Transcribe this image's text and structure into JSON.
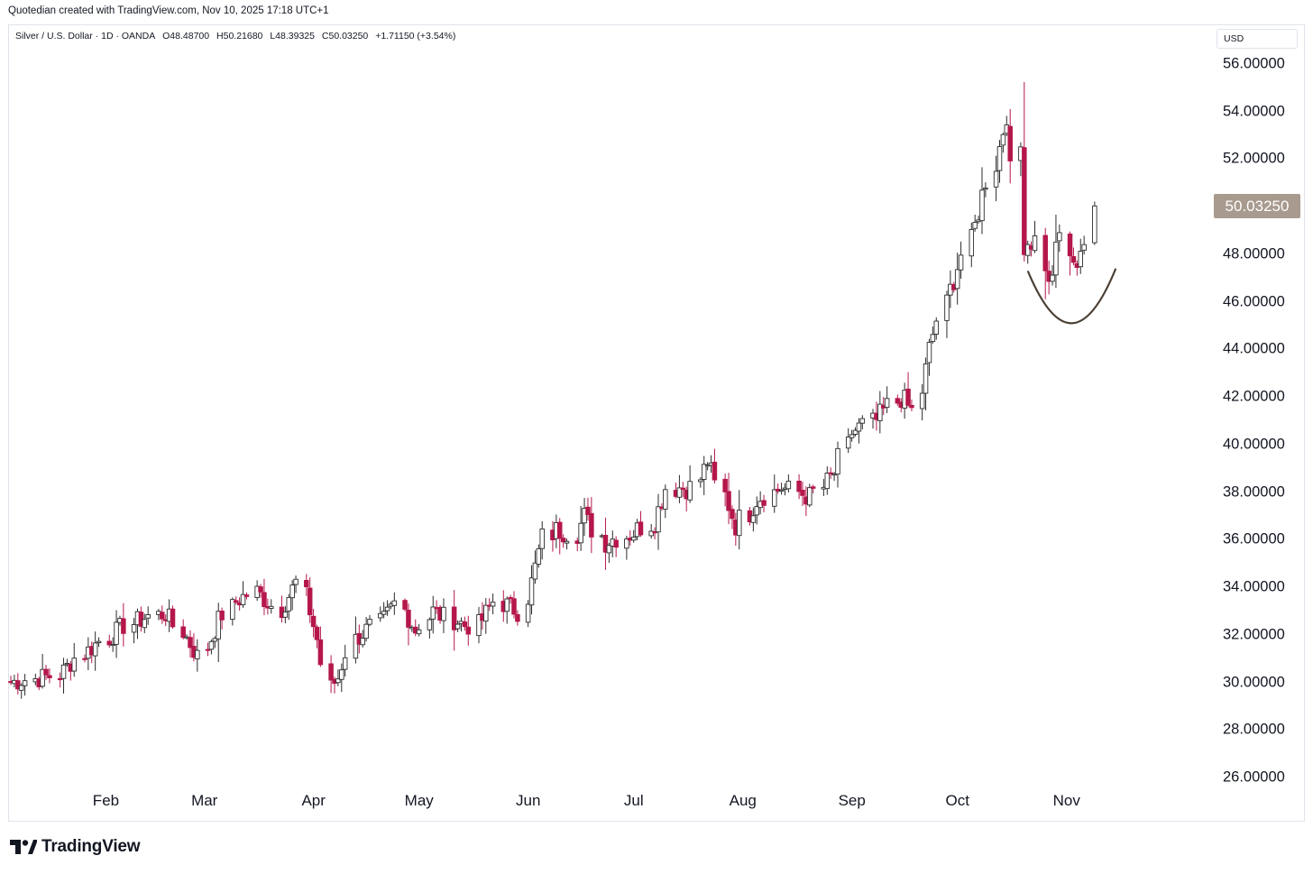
{
  "header": {
    "credit": "Quotedian created with TradingView.com, Nov 10, 2025 17:18 UTC+1"
  },
  "legend": {
    "symbol": "Silver / U.S. Dollar · 1D · OANDA",
    "open": "O48.48700",
    "high": "H50.21680",
    "low": "L48.39325",
    "close": "C50.03250",
    "change": "+1.71150 (+3.54%)"
  },
  "price_scale": {
    "currency": "USD",
    "last_price_label": "50.03250",
    "last_price_color": "#a89a8e"
  },
  "branding": {
    "logo_icon": "tradingview-logo-icon",
    "text": "TradingView"
  },
  "colors": {
    "up_body": "#ffffff",
    "up_outline": "#2b2b2b",
    "down_body": "#b5174a",
    "wick": "#2b2b2b",
    "down_wick": "#b5174a",
    "annotation": "#4a3f35"
  },
  "chart_data": {
    "type": "candlestick",
    "title": "Silver / U.S. Dollar · 1D · OANDA",
    "ylim": [
      25,
      57.2
    ],
    "yticks": [
      26,
      28,
      30,
      32,
      34,
      36,
      38,
      40,
      42,
      44,
      46,
      48,
      50,
      52,
      54,
      56
    ],
    "ytick_labels": [
      "26.00000",
      "28.00000",
      "30.00000",
      "32.00000",
      "34.00000",
      "36.00000",
      "38.00000",
      "40.00000",
      "42.00000",
      "44.00000",
      "46.00000",
      "48.00000",
      "50.00000",
      "52.00000",
      "54.00000",
      "56.00000"
    ],
    "xticks": [
      {
        "label": "Feb",
        "date": "2025-02-01"
      },
      {
        "label": "Mar",
        "date": "2025-03-01"
      },
      {
        "label": "Apr",
        "date": "2025-04-01"
      },
      {
        "label": "May",
        "date": "2025-05-01"
      },
      {
        "label": "Jun",
        "date": "2025-06-01"
      },
      {
        "label": "Jul",
        "date": "2025-07-01"
      },
      {
        "label": "Aug",
        "date": "2025-08-01"
      },
      {
        "label": "Sep",
        "date": "2025-09-01"
      },
      {
        "label": "Oct",
        "date": "2025-10-01"
      },
      {
        "label": "Nov",
        "date": "2025-11-01"
      }
    ],
    "x_range": [
      "2025-01-06",
      "2025-11-29"
    ],
    "series": [
      {
        "name": "Silver / U.S. Dollar",
        "anchors": [
          {
            "date": "2025-01-06",
            "close": 30.0
          },
          {
            "date": "2025-01-20",
            "close": 30.3
          },
          {
            "date": "2025-01-27",
            "close": 31.2
          },
          {
            "date": "2025-02-07",
            "close": 32.4
          },
          {
            "date": "2025-02-14",
            "close": 32.8
          },
          {
            "date": "2025-02-19",
            "close": 32.9
          },
          {
            "date": "2025-02-28",
            "close": 31.1
          },
          {
            "date": "2025-03-06",
            "close": 32.6
          },
          {
            "date": "2025-03-11",
            "close": 33.4
          },
          {
            "date": "2025-03-17",
            "close": 33.8
          },
          {
            "date": "2025-03-24",
            "close": 33.1
          },
          {
            "date": "2025-03-28",
            "close": 34.2
          },
          {
            "date": "2025-04-03",
            "close": 31.8
          },
          {
            "date": "2025-04-07",
            "close": 29.8
          },
          {
            "date": "2025-04-09",
            "close": 30.2
          },
          {
            "date": "2025-04-14",
            "close": 31.8
          },
          {
            "date": "2025-04-22",
            "close": 32.6
          },
          {
            "date": "2025-04-25",
            "close": 33.3
          },
          {
            "date": "2025-05-01",
            "close": 32.2
          },
          {
            "date": "2025-05-06",
            "close": 33.0
          },
          {
            "date": "2025-05-15",
            "close": 32.4
          },
          {
            "date": "2025-05-19",
            "close": 32.4
          },
          {
            "date": "2025-05-23",
            "close": 33.4
          },
          {
            "date": "2025-05-30",
            "close": 33.0
          },
          {
            "date": "2025-06-03",
            "close": 34.2
          },
          {
            "date": "2025-06-06",
            "close": 36.1
          },
          {
            "date": "2025-06-10",
            "close": 36.4
          },
          {
            "date": "2025-06-16",
            "close": 36.3
          },
          {
            "date": "2025-06-18",
            "close": 37.0
          },
          {
            "date": "2025-06-24",
            "close": 35.9
          },
          {
            "date": "2025-07-02",
            "close": 36.3
          },
          {
            "date": "2025-07-08",
            "close": 36.8
          },
          {
            "date": "2025-07-11",
            "close": 38.2
          },
          {
            "date": "2025-07-18",
            "close": 38.2
          },
          {
            "date": "2025-07-23",
            "close": 39.3
          },
          {
            "date": "2025-07-25",
            "close": 38.3
          },
          {
            "date": "2025-07-31",
            "close": 36.6
          },
          {
            "date": "2025-08-06",
            "close": 37.7
          },
          {
            "date": "2025-08-13",
            "close": 38.2
          },
          {
            "date": "2025-08-21",
            "close": 37.8
          },
          {
            "date": "2025-08-28",
            "close": 38.8
          },
          {
            "date": "2025-09-02",
            "close": 40.5
          },
          {
            "date": "2025-09-09",
            "close": 41.0
          },
          {
            "date": "2025-09-16",
            "close": 42.0
          },
          {
            "date": "2025-09-19",
            "close": 41.4
          },
          {
            "date": "2025-09-24",
            "close": 44.0
          },
          {
            "date": "2025-09-30",
            "close": 46.5
          },
          {
            "date": "2025-10-06",
            "close": 48.5
          },
          {
            "date": "2025-10-09",
            "close": 50.5
          },
          {
            "date": "2025-10-14",
            "close": 52.5
          },
          {
            "date": "2025-10-16",
            "close": 54.0
          },
          {
            "date": "2025-10-17",
            "close": 51.4
          },
          {
            "date": "2025-10-20",
            "close": 52.5
          },
          {
            "date": "2025-10-21",
            "close": 48.5
          },
          {
            "date": "2025-10-24",
            "close": 48.6
          },
          {
            "date": "2025-10-28",
            "close": 46.6
          },
          {
            "date": "2025-10-31",
            "close": 48.8
          },
          {
            "date": "2025-11-04",
            "close": 47.3
          },
          {
            "date": "2025-11-06",
            "close": 48.3
          },
          {
            "date": "2025-11-07",
            "close": 48.5
          },
          {
            "date": "2025-11-10",
            "close": 50.0325
          }
        ]
      }
    ],
    "last_bar": {
      "date": "2025-11-10",
      "open": 48.487,
      "high": 50.2168,
      "low": 48.39325,
      "close": 50.0325
    },
    "annotation": {
      "type": "rounded-bottom-arc",
      "from_date": "2025-10-22",
      "to_date": "2025-11-16",
      "bottom_price": 45.1
    }
  }
}
